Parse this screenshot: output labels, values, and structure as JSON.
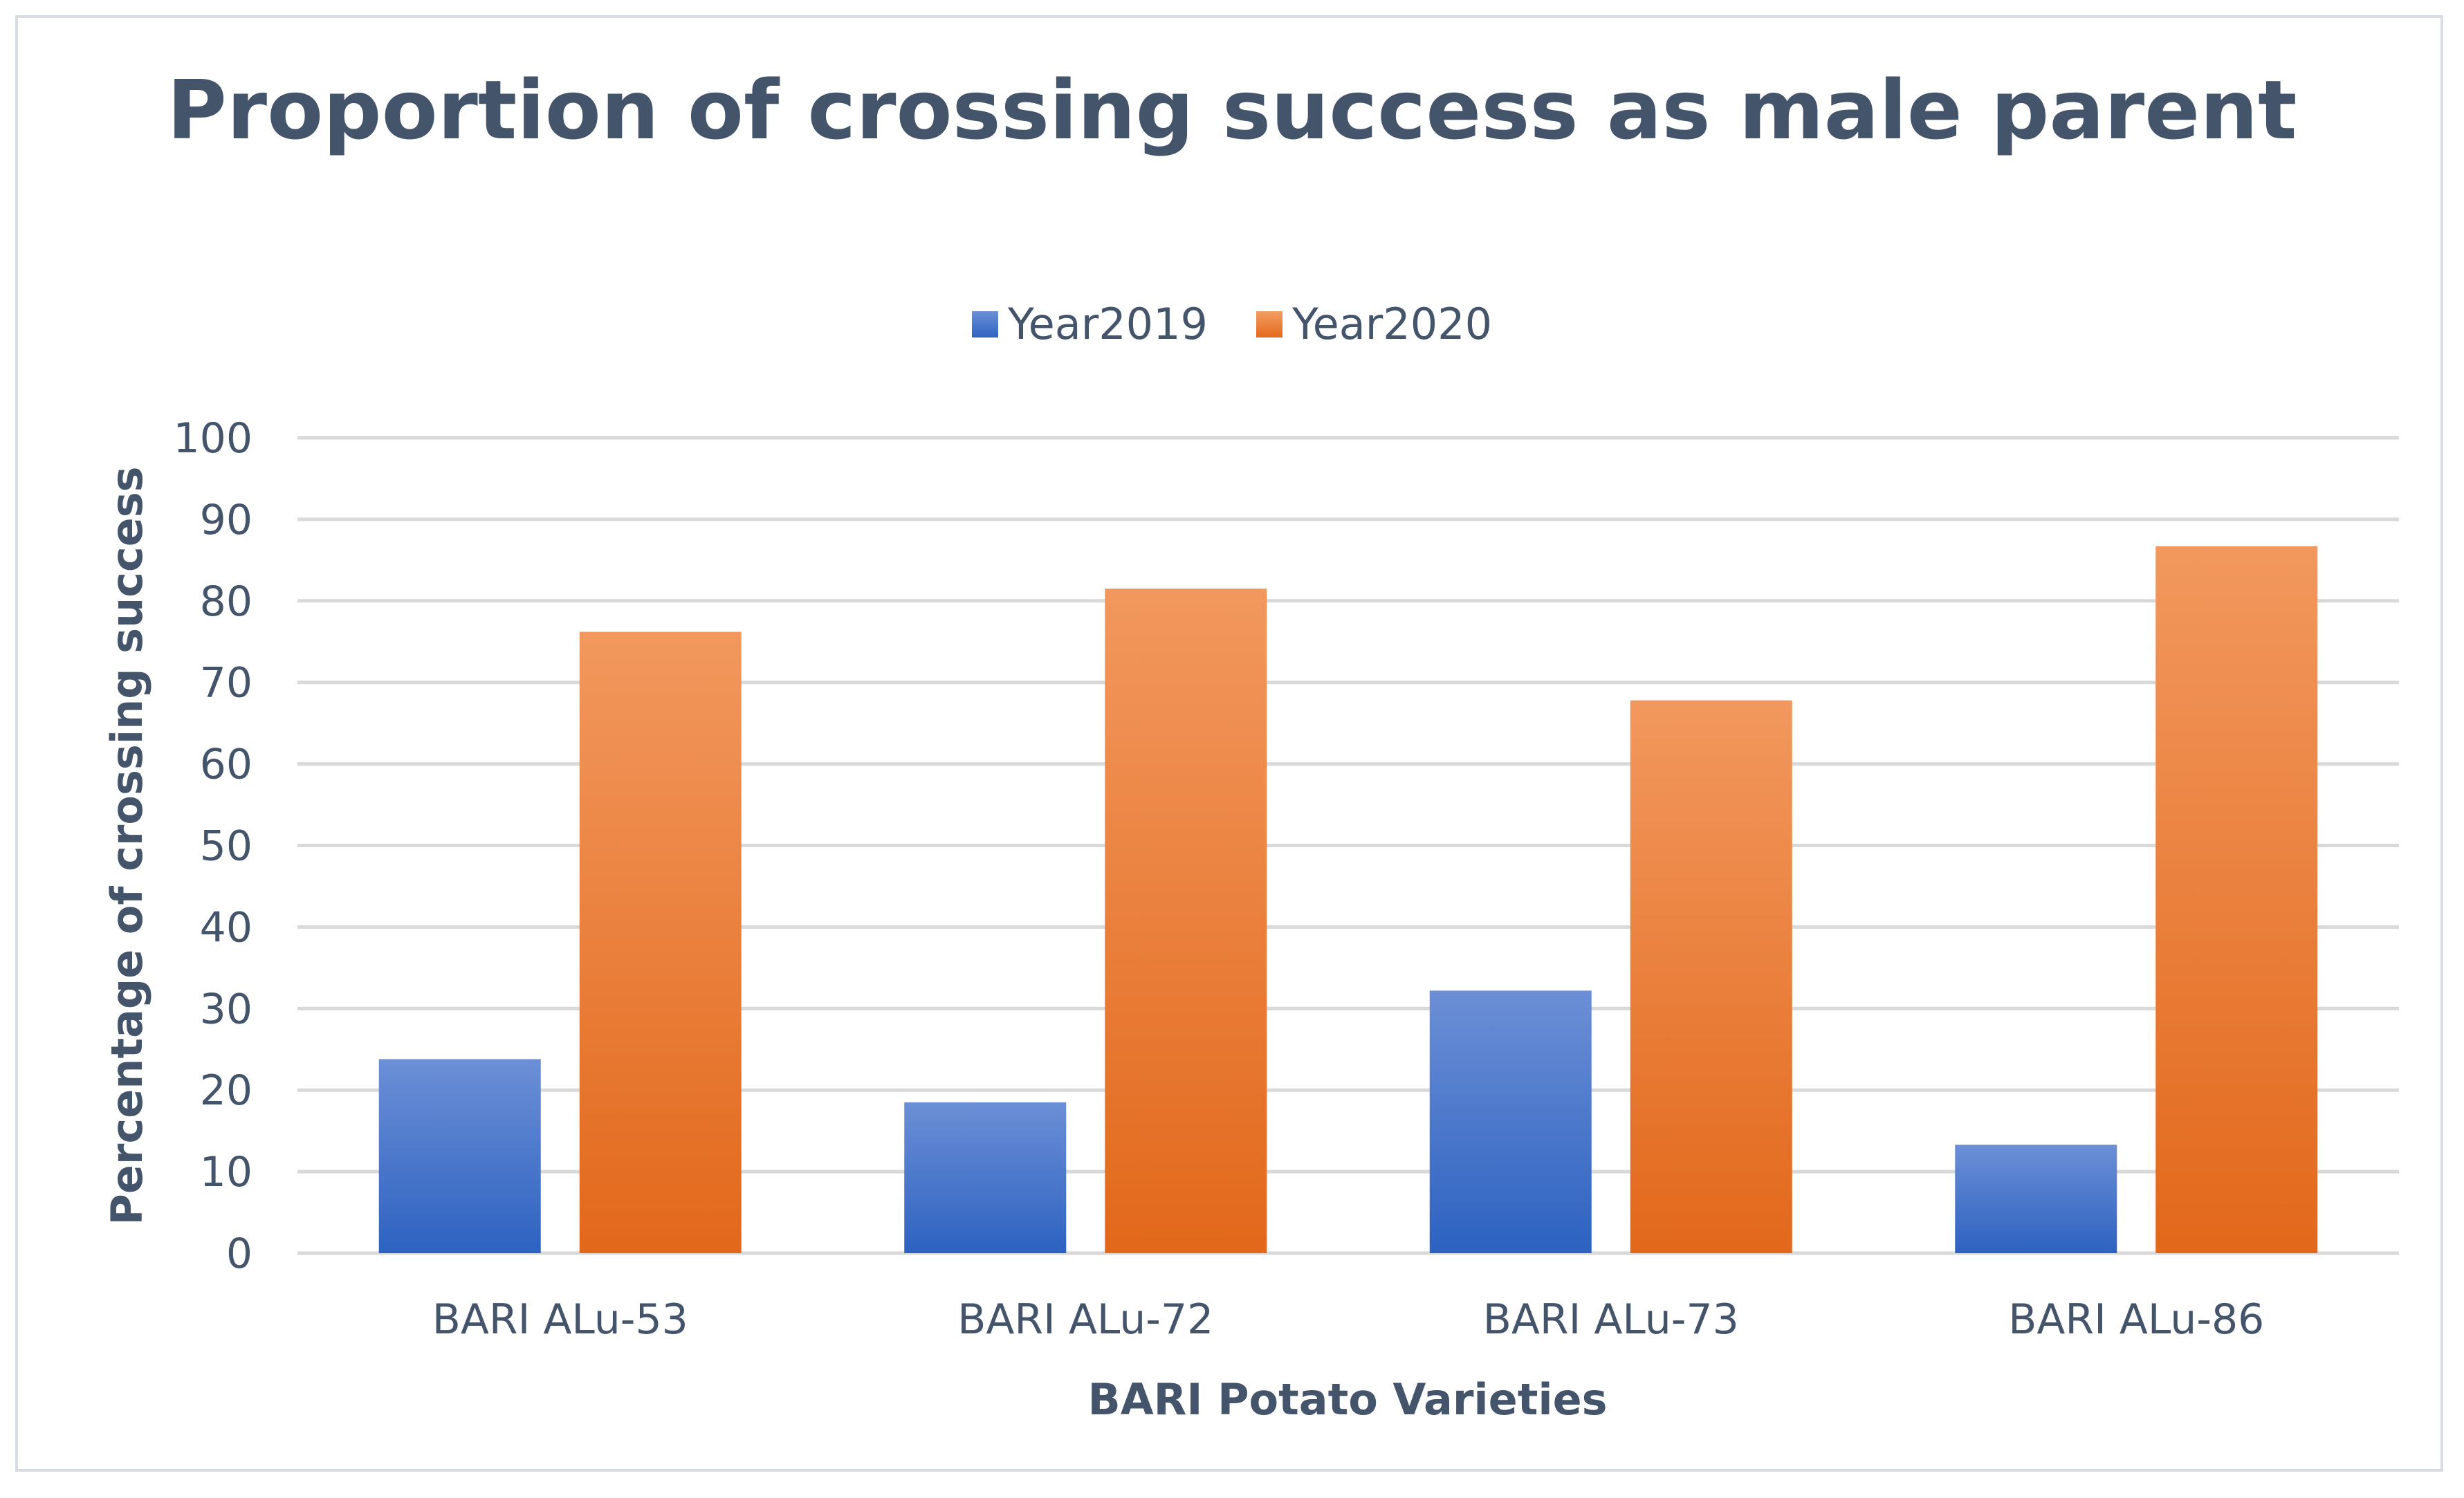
{
  "chart_data": {
    "type": "bar",
    "title": "Proportion of crossing success as male parent",
    "xlabel": "BARI Potato Varieties",
    "ylabel": "Percentage of crossing success",
    "categories": [
      "BARI ALu-53",
      "BARI ALu-72",
      "BARI ALu-73",
      "BARI ALu-86"
    ],
    "series": [
      {
        "name": "Year2019",
        "color": "#4472c4",
        "values": [
          23.8,
          18.5,
          32.2,
          13.3
        ]
      },
      {
        "name": "Year2020",
        "color": "#ed7d31",
        "values": [
          76.2,
          81.5,
          67.8,
          86.7
        ]
      }
    ],
    "ylim": [
      0,
      100
    ],
    "yticks": [
      0,
      10,
      20,
      30,
      40,
      50,
      60,
      70,
      80,
      90,
      100
    ],
    "grid": true,
    "legend": "top-center"
  }
}
